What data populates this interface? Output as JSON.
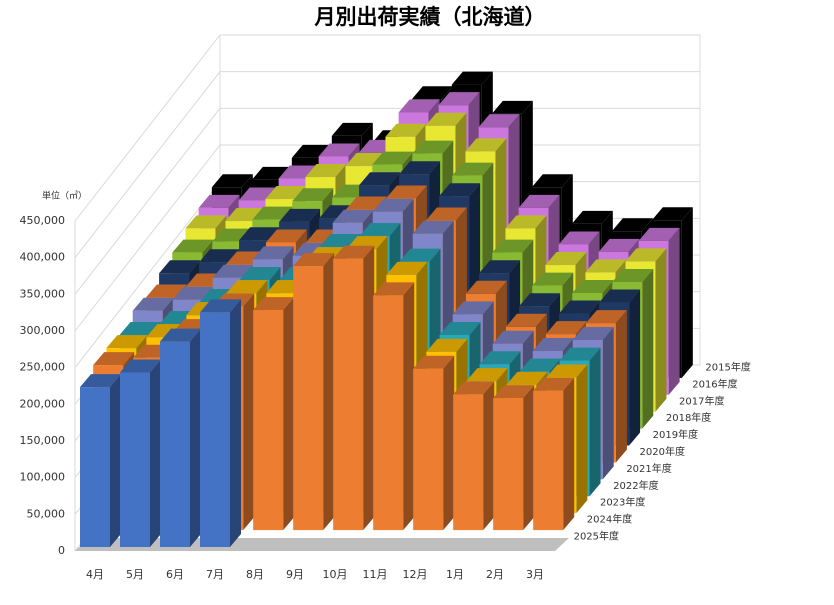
{
  "chart_data": {
    "type": "bar3d",
    "title": "月別出荷実績（北海道）",
    "y_label": "単位（㎥）",
    "categories": [
      "4月",
      "5月",
      "6月",
      "7月",
      "8月",
      "9月",
      "10月",
      "11月",
      "12月",
      "1月",
      "2月",
      "3月"
    ],
    "ylim": [
      0,
      450000
    ],
    "yticks": [
      0,
      {
        "value": 50000,
        "label": "50,000"
      },
      {
        "value": 100000,
        "label": "100,000"
      },
      {
        "value": 150000,
        "label": "150,000"
      },
      {
        "value": 200000,
        "label": "200,000"
      },
      {
        "value": 250000,
        "label": "250,000"
      },
      {
        "value": 300000,
        "label": "300,000"
      },
      {
        "value": 350000,
        "label": "350,000"
      },
      {
        "value": 400000,
        "label": "400,000"
      },
      {
        "value": 450000,
        "label": "450,000"
      }
    ],
    "grid": true,
    "series": [
      {
        "name": "2015年度",
        "color": "#000000",
        "values": [
          260000,
          270000,
          300000,
          330000,
          320000,
          380000,
          400000,
          360000,
          260000,
          210000,
          200000,
          215000
        ]
      },
      {
        "name": "2016年度",
        "color": "#cc77dd",
        "values": [
          255000,
          265000,
          295000,
          325000,
          330000,
          385000,
          395000,
          365000,
          255000,
          205000,
          195000,
          210000
        ]
      },
      {
        "name": "2017年度",
        "color": "#e8e832",
        "values": [
          250000,
          260000,
          290000,
          320000,
          335000,
          375000,
          390000,
          355000,
          250000,
          200000,
          190000,
          205000
        ]
      },
      {
        "name": "2018年度",
        "color": "#88bb33",
        "values": [
          240000,
          255000,
          285000,
          310000,
          315000,
          360000,
          375000,
          345000,
          240000,
          195000,
          185000,
          200000
        ]
      },
      {
        "name": "2019年度",
        "color": "#1f3864",
        "values": [
          235000,
          250000,
          280000,
          305000,
          310000,
          355000,
          370000,
          340000,
          235000,
          190000,
          180000,
          195000
        ]
      },
      {
        "name": "2020年度",
        "color": "#ed7d31",
        "values": [
          225000,
          240000,
          270000,
          300000,
          300000,
          345000,
          360000,
          330000,
          230000,
          185000,
          175000,
          190000
        ]
      },
      {
        "name": "2021年度",
        "color": "#7f86c9",
        "values": [
          230000,
          245000,
          275000,
          300000,
          305000,
          350000,
          365000,
          335000,
          225000,
          185000,
          175000,
          190000
        ]
      },
      {
        "name": "2022年度",
        "color": "#2aa8b8",
        "values": [
          220000,
          235000,
          265000,
          295000,
          295000,
          340000,
          355000,
          320000,
          220000,
          180000,
          170000,
          185000
        ]
      },
      {
        "name": "2023年度",
        "color": "#ffc000",
        "values": [
          225000,
          240000,
          270000,
          300000,
          300000,
          345000,
          360000,
          325000,
          220000,
          180000,
          175000,
          185000
        ]
      },
      {
        "name": "2024年度",
        "color": "#ed7d31",
        "values": [
          225000,
          235000,
          270000,
          305000,
          300000,
          360000,
          370000,
          320000,
          220000,
          185000,
          180000,
          190000
        ]
      },
      {
        "name": "2025年度",
        "color": "#4472c4",
        "values": [
          218000,
          238000,
          280000,
          320000,
          null,
          null,
          null,
          null,
          null,
          null,
          null,
          null
        ]
      }
    ]
  }
}
